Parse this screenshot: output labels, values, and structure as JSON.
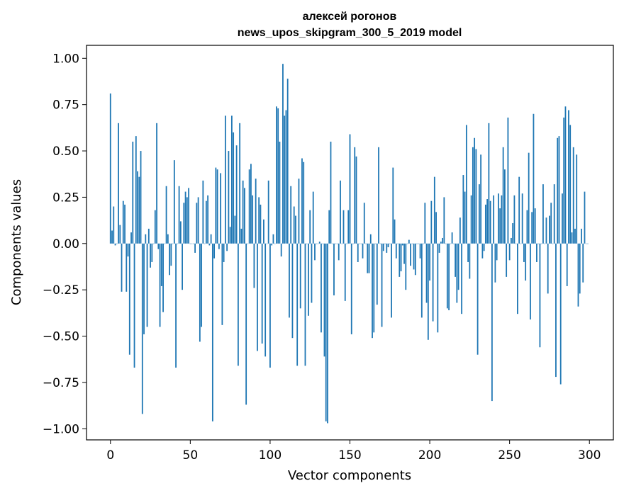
{
  "chart_data": {
    "type": "bar",
    "title_line1": "алексей рогонов",
    "title_line2": "news_upos_skipgram_300_5_2019 model",
    "xlabel": "Vector components",
    "ylabel": "Components values",
    "xlim": [
      -15,
      315
    ],
    "ylim": [
      -1.06,
      1.07
    ],
    "x_ticks": [
      0,
      50,
      100,
      150,
      200,
      250,
      300
    ],
    "x_tick_labels": [
      "0",
      "50",
      "100",
      "150",
      "200",
      "250",
      "300"
    ],
    "y_ticks": [
      1.0,
      0.75,
      0.5,
      0.25,
      0.0,
      -0.25,
      -0.5,
      -0.75,
      -1.0
    ],
    "y_tick_labels": [
      "1.00",
      "0.75",
      "0.50",
      "0.25",
      "0.00",
      "−0.25",
      "−0.50",
      "−0.75",
      "−1.00"
    ],
    "grid": false,
    "bar_color": "#1f77b4",
    "values": [
      0.81,
      0.07,
      0.2,
      -0.01,
      0.0,
      0.65,
      0.1,
      -0.26,
      0.23,
      0.21,
      -0.26,
      -0.07,
      -0.6,
      0.06,
      0.55,
      -0.67,
      0.58,
      0.39,
      0.36,
      0.5,
      -0.92,
      -0.49,
      0.05,
      -0.45,
      0.08,
      -0.13,
      -0.1,
      0.0,
      0.18,
      0.65,
      -0.03,
      -0.45,
      -0.23,
      -0.37,
      0.0,
      0.31,
      0.05,
      -0.17,
      -0.12,
      0.0,
      0.45,
      -0.67,
      0.0,
      0.31,
      0.12,
      -0.25,
      0.22,
      0.28,
      0.25,
      0.3,
      0.0,
      0.0,
      0.0,
      -0.05,
      0.22,
      0.25,
      -0.53,
      -0.45,
      0.34,
      0.0,
      0.23,
      0.26,
      -0.01,
      0.05,
      -0.96,
      -0.08,
      0.41,
      0.4,
      -0.03,
      0.38,
      -0.44,
      -0.1,
      0.69,
      -0.04,
      0.5,
      0.09,
      0.69,
      0.6,
      0.15,
      0.53,
      -0.66,
      0.65,
      0.08,
      0.34,
      0.3,
      -0.87,
      0.0,
      0.4,
      0.43,
      0.26,
      -0.24,
      0.35,
      -0.58,
      0.25,
      0.21,
      -0.54,
      0.13,
      -0.61,
      0.0,
      0.34,
      -0.67,
      -0.01,
      0.05,
      0.0,
      0.74,
      0.73,
      0.55,
      -0.07,
      0.97,
      0.69,
      0.72,
      0.89,
      -0.4,
      0.31,
      -0.51,
      0.2,
      0.15,
      -0.66,
      0.35,
      -0.35,
      0.46,
      0.44,
      -0.66,
      0.0,
      -0.39,
      0.18,
      -0.32,
      0.28,
      -0.09,
      0.0,
      0.0,
      0.01,
      -0.48,
      0.0,
      -0.61,
      -0.96,
      -0.97,
      0.18,
      0.55,
      0.0,
      -0.28,
      0.0,
      0.0,
      -0.09,
      0.34,
      0.0,
      0.18,
      -0.31,
      0.0,
      0.18,
      0.59,
      -0.49,
      0.0,
      0.52,
      0.47,
      -0.1,
      0.0,
      0.0,
      -0.08,
      0.22,
      0.0,
      -0.16,
      -0.16,
      0.05,
      -0.51,
      -0.48,
      0.0,
      -0.33,
      0.52,
      0.0,
      -0.45,
      -0.04,
      0.0,
      -0.05,
      -0.02,
      0.0,
      -0.4,
      0.41,
      0.13,
      -0.08,
      0.0,
      -0.18,
      -0.15,
      -0.01,
      -0.11,
      -0.25,
      0.0,
      0.02,
      -0.12,
      0.0,
      -0.14,
      -0.17,
      0.0,
      0.0,
      -0.08,
      -0.4,
      0.0,
      0.22,
      -0.32,
      -0.52,
      -0.2,
      0.23,
      -0.42,
      0.36,
      0.17,
      -0.48,
      -0.05,
      0.01,
      0.03,
      0.25,
      0.0,
      -0.35,
      -0.36,
      0.0,
      0.06,
      0.0,
      -0.18,
      -0.32,
      -0.25,
      0.14,
      -0.38,
      0.37,
      0.28,
      0.64,
      -0.1,
      -0.19,
      0.26,
      0.52,
      0.57,
      0.51,
      -0.6,
      0.32,
      0.48,
      -0.08,
      -0.04,
      0.21,
      0.24,
      0.65,
      0.23,
      -0.85,
      0.26,
      -0.21,
      -0.09,
      0.27,
      0.19,
      0.26,
      0.52,
      0.4,
      -0.18,
      0.68,
      -0.09,
      0.03,
      0.11,
      0.26,
      0.0,
      -0.38,
      0.36,
      0.0,
      0.27,
      -0.1,
      -0.2,
      0.18,
      0.49,
      -0.41,
      0.17,
      0.7,
      0.19,
      -0.1,
      0.0,
      -0.56,
      0.0,
      0.32,
      0.0,
      0.14,
      -0.27,
      0.15,
      0.22,
      0.0,
      0.32,
      -0.72,
      0.57,
      0.58,
      -0.76,
      0.27,
      0.68,
      0.74,
      -0.23,
      0.72,
      0.64,
      0.06,
      0.52,
      0.08,
      0.48,
      -0.34,
      -0.27,
      0.08,
      -0.21,
      0.28,
      0.0,
      0.0
    ]
  }
}
